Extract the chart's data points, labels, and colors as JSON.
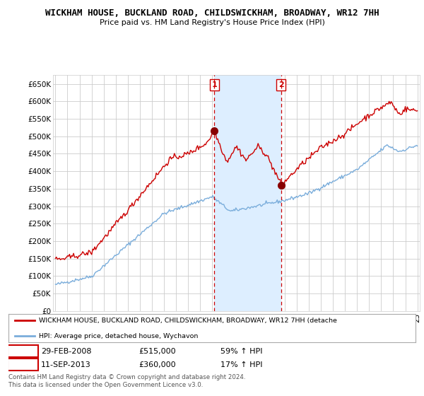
{
  "title": "WICKHAM HOUSE, BUCKLAND ROAD, CHILDSWICKHAM, BROADWAY, WR12 7HH",
  "subtitle": "Price paid vs. HM Land Registry's House Price Index (HPI)",
  "ylabel_ticks": [
    "£0",
    "£50K",
    "£100K",
    "£150K",
    "£200K",
    "£250K",
    "£300K",
    "£350K",
    "£400K",
    "£450K",
    "£500K",
    "£550K",
    "£600K",
    "£650K"
  ],
  "ytick_values": [
    0,
    50000,
    100000,
    150000,
    200000,
    250000,
    300000,
    350000,
    400000,
    450000,
    500000,
    550000,
    600000,
    650000
  ],
  "ylim": [
    0,
    675000
  ],
  "sale1": {
    "date_x": 2008.17,
    "price": 515000,
    "label": "1",
    "date_str": "29-FEB-2008",
    "pct": "59%"
  },
  "sale2": {
    "date_x": 2013.71,
    "price": 360000,
    "label": "2",
    "date_str": "11-SEP-2013",
    "pct": "17%"
  },
  "red_line_color": "#cc0000",
  "blue_line_color": "#7aaddb",
  "background_color": "#ffffff",
  "plot_bg_color": "#ffffff",
  "grid_color": "#cccccc",
  "shade_color": "#ddeeff",
  "legend_label_red": "WICKHAM HOUSE, BUCKLAND ROAD, CHILDSWICKHAM, BROADWAY, WR12 7HH (detache",
  "legend_label_blue": "HPI: Average price, detached house, Wychavon",
  "footer": "Contains HM Land Registry data © Crown copyright and database right 2024.\nThis data is licensed under the Open Government Licence v3.0.",
  "xmin": 1995,
  "xmax": 2025
}
